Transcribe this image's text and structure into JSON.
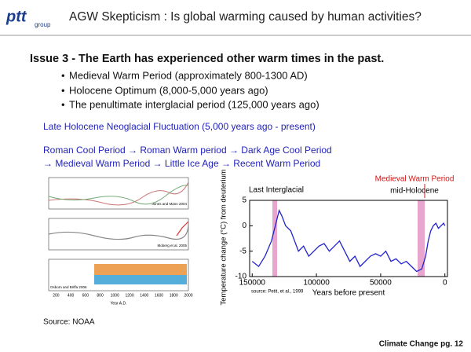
{
  "header": {
    "logo": "ptt",
    "logo_sub": "group",
    "title": "AGW Skepticism : Is global warming caused by human activities?"
  },
  "issue": "Issue 3 - The Earth has experienced other warm times in the past.",
  "bullets": [
    "Medieval Warm Period (approximately 800-1300 AD)",
    "Holocene Optimum (8,000-5,000 years ago)",
    "The penultimate interglacial period (125,000 years ago)"
  ],
  "blue_lines": [
    "Late Holocene Neoglacial Fluctuation (5,000 years ago - present)",
    "Roman Cool Period → Roman Warm period → Dark Age Cool Period",
    "→ Medieval Warm Period → Little Ice Age → Recent Warm Period"
  ],
  "left_figure": {
    "panels": [
      "Jones and Mann 2004",
      "Moberg et al. 2005",
      "Osborn and Briffa 2006"
    ],
    "xticks": [
      200,
      400,
      600,
      800,
      1000,
      1200,
      1400,
      1600,
      1800,
      2000
    ],
    "xlabel": "Year A.D."
  },
  "chart_data": {
    "type": "line",
    "ylabel": "Temperature change (°C) from deuterium",
    "xlabel": "Years before present",
    "source": "source: Petit, et al., 1999",
    "annotations": [
      "Medieval Warm Period",
      "Last Interglacial",
      "mid-Holocene"
    ],
    "xlim": [
      152000,
      -2000
    ],
    "ylim": [
      -10,
      5
    ],
    "xticks": [
      150000,
      100000,
      50000,
      0
    ],
    "yticks": [
      5,
      0,
      -5,
      -10
    ],
    "x": [
      150000,
      145000,
      140000,
      135000,
      132000,
      129000,
      127000,
      124000,
      120000,
      117000,
      114000,
      110000,
      106000,
      102000,
      98000,
      94000,
      90000,
      86000,
      82000,
      78000,
      74000,
      70000,
      66000,
      62000,
      58000,
      54000,
      50000,
      46000,
      42000,
      38000,
      34000,
      30000,
      26000,
      22000,
      18000,
      15000,
      13000,
      11000,
      9000,
      7000,
      5000,
      3000,
      1000,
      0
    ],
    "series": [
      {
        "color": "#2222cc",
        "values": [
          -7,
          -8,
          -6,
          -3,
          0,
          3,
          2,
          0,
          -1,
          -3,
          -5,
          -4,
          -6,
          -5,
          -4,
          -3.5,
          -5,
          -4,
          -3,
          -5,
          -7,
          -6,
          -8,
          -7,
          -6,
          -5.5,
          -6,
          -5,
          -7,
          -6.5,
          -7.5,
          -7,
          -8,
          -9,
          -8.5,
          -6,
          -3,
          -1,
          0,
          0.5,
          -0.5,
          0,
          0.5,
          0
        ]
      }
    ]
  },
  "source": "Source: NOAA",
  "footer": {
    "page": "Climate Change pg. 12"
  }
}
